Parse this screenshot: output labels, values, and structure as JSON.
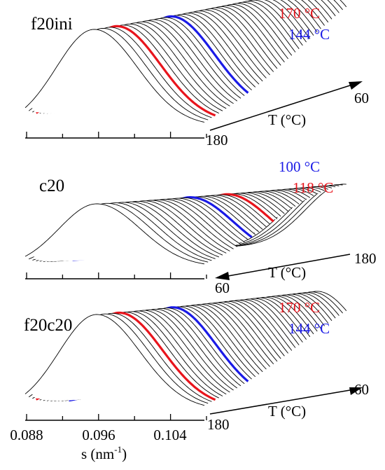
{
  "figure": {
    "xlabel": "s (nm",
    "xlabel_sup": "-1",
    "xlabel_tail": ")",
    "tick_labels": [
      "0.088",
      "0.096",
      "0.104"
    ],
    "colors": {
      "red": "#e8141c",
      "blue": "#1a1ae6",
      "black": "#000000"
    }
  },
  "chart_data": [
    {
      "type": "waterfall",
      "panel": "f20ini",
      "label": "f20ini",
      "axis_label": "T (°C)",
      "t_start": 180,
      "t_end": 60,
      "t_start_label": "180",
      "t_end_label": "60",
      "arrow_direction": "toward-60",
      "n_curves": 40,
      "highlights": [
        {
          "temperature": 170,
          "label": "170 °C",
          "color": "red"
        },
        {
          "temperature": 144,
          "label": "144 °C",
          "color": "blue"
        }
      ],
      "peak_s_first": 0.0955,
      "peak_s_last": 0.1045,
      "xlim": [
        0.088,
        0.109
      ]
    },
    {
      "type": "waterfall",
      "panel": "c20",
      "label": "c20",
      "axis_label": "T (°C)",
      "t_start": 60,
      "t_end": 180,
      "t_start_label": "60",
      "t_end_label": "180",
      "arrow_direction": "toward-60",
      "n_curves": 40,
      "highlights": [
        {
          "temperature": 100,
          "label": "100 °C",
          "color": "blue"
        },
        {
          "temperature": 118,
          "label": "118 °C",
          "color": "red"
        }
      ],
      "peak_s_first": 0.0958,
      "peak_s_last": 0.1075,
      "xlim": [
        0.088,
        0.109
      ]
    },
    {
      "type": "waterfall",
      "panel": "f20c20",
      "label": "f20c20",
      "axis_label": "T (°C)",
      "t_start": 180,
      "t_end": 60,
      "t_start_label": "180",
      "t_end_label": "60",
      "arrow_direction": "toward-60",
      "n_curves": 40,
      "highlights": [
        {
          "temperature": 170,
          "label": "170 °C",
          "color": "red"
        },
        {
          "temperature": 144,
          "label": "144 °C",
          "color": "blue"
        }
      ],
      "peak_s_first": 0.0958,
      "peak_s_last": 0.1045,
      "xlim": [
        0.088,
        0.109
      ]
    }
  ]
}
